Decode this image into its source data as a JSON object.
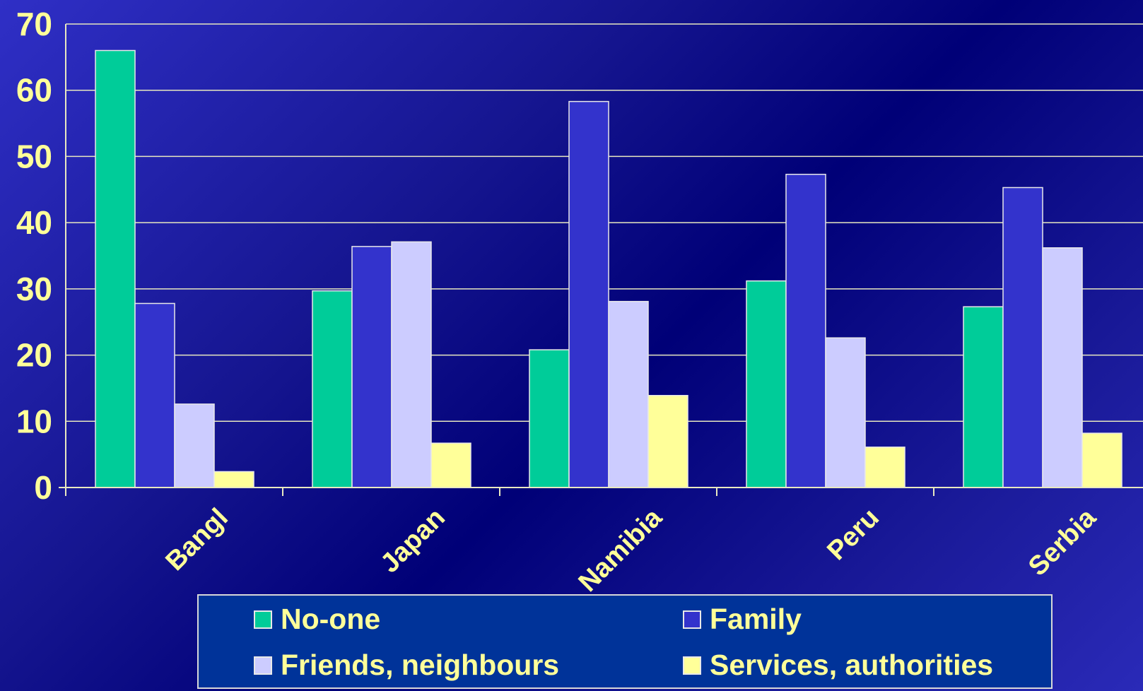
{
  "chart_data": {
    "type": "bar",
    "title": "",
    "xlabel": "",
    "ylabel": "",
    "ylim": [
      0,
      70
    ],
    "yticks": [
      "0",
      "10",
      "20",
      "30",
      "40",
      "50",
      "60",
      "70"
    ],
    "categories": [
      "Bangl",
      "Japan",
      "Namibia",
      "Peru",
      "Serbia"
    ],
    "grid": true,
    "legend_position": "bottom",
    "series": [
      {
        "name": "No-one",
        "color": "#00cc99",
        "values": [
          66,
          29.7,
          20.8,
          31.2,
          27.3
        ]
      },
      {
        "name": "Family",
        "color": "#3333cc",
        "values": [
          27.8,
          36.4,
          58.3,
          47.3,
          45.3
        ]
      },
      {
        "name": "Friends, neighbours",
        "color": "#ccccff",
        "values": [
          12.6,
          37.1,
          28.1,
          22.6,
          36.2
        ]
      },
      {
        "name": "Services, authorities",
        "color": "#ffff99",
        "values": [
          2.4,
          6.7,
          13.9,
          6.1,
          8.2
        ]
      }
    ]
  }
}
